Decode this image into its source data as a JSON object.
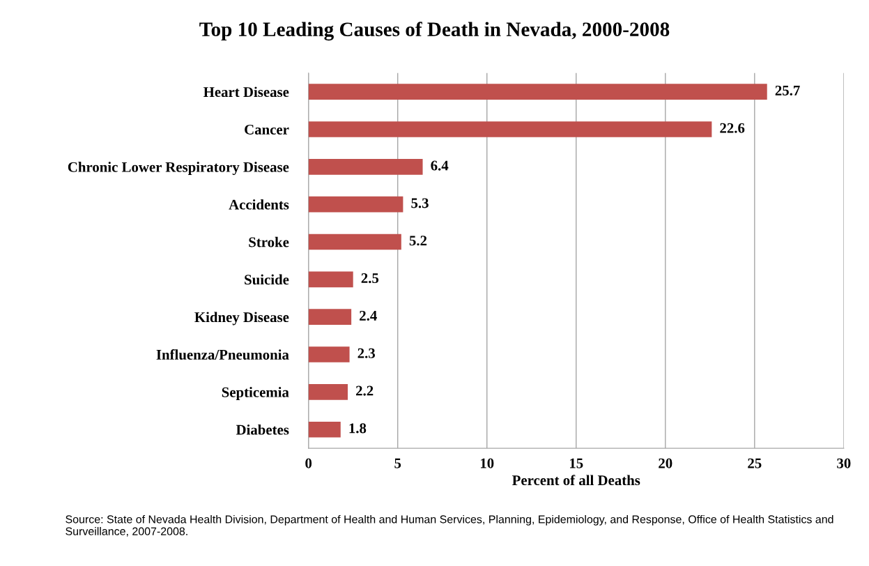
{
  "chart_data": {
    "type": "bar",
    "orientation": "horizontal",
    "title": "Top 10 Leading Causes of Death in Nevada, 2000-2008",
    "xlabel": "Percent of all Deaths",
    "categories": [
      "Heart Disease",
      "Cancer",
      "Chronic Lower Respiratory Disease",
      "Accidents",
      "Stroke",
      "Suicide",
      "Kidney Disease",
      "Influenza/Pneumonia",
      "Septicemia",
      "Diabetes"
    ],
    "values": [
      25.7,
      22.6,
      6.4,
      5.3,
      5.2,
      2.5,
      2.4,
      2.3,
      2.2,
      1.8
    ],
    "color": "#c0504d",
    "xlim": [
      0,
      30
    ],
    "xticks": [
      0,
      5,
      10,
      15,
      20,
      25,
      30
    ],
    "grid": "x",
    "data_labels": true,
    "legend": false,
    "annotations": [
      "Source: State of Nevada Health Division, Department of Health and Human Services, Planning, Epidemiology, and Response, Office of Health Statistics and Surveillance, 2007-2008."
    ]
  }
}
